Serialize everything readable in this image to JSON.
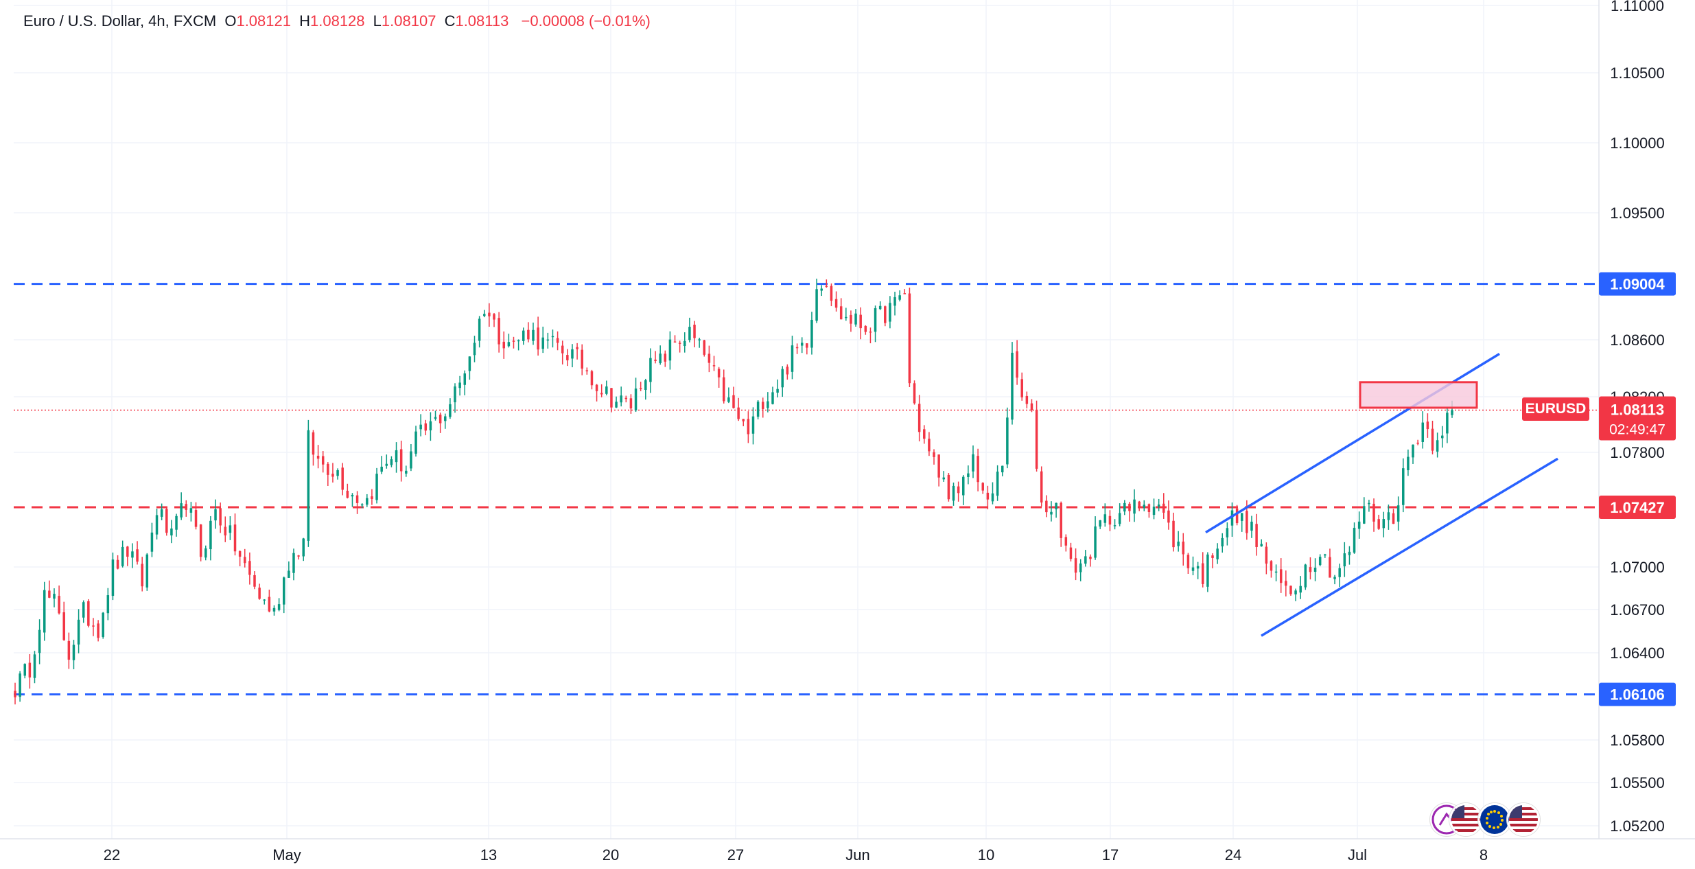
{
  "header": {
    "symbol_name": "Euro / U.S. Dollar, 4h, FXCM",
    "open_label": "O",
    "open_value": "1.08121",
    "high_label": "H",
    "high_value": "1.08128",
    "low_label": "L",
    "low_value": "1.08107",
    "close_label": "C",
    "close_value": "1.08113",
    "change": "−0.00008 (−0.01%)"
  },
  "price_tag": {
    "symbol": "EURUSD",
    "price": "1.08113",
    "countdown": "02:49:47"
  },
  "colors": {
    "up": "#089981",
    "down": "#f23645",
    "blue_level": "#2962ff",
    "red_level": "#f23645",
    "channel": "#2962ff",
    "zone_fill": "#f8c8dc",
    "zone_border": "#f23645",
    "grid": "#f0f3fa"
  },
  "icons": [
    "flash-icon",
    "us-flag-icon",
    "eu-flag-icon",
    "us-flag-icon"
  ],
  "chart_data": {
    "type": "candlestick",
    "title": "Euro / U.S. Dollar, 4h, FXCM",
    "y_ticks": [
      "1.11000",
      "1.10500",
      "1.10000",
      "1.09500",
      "1.08600",
      "1.08200",
      "1.07800",
      "1.07000",
      "1.06700",
      "1.06400",
      "1.05800",
      "1.05500",
      "1.05200"
    ],
    "x_ticks": [
      "22",
      "May",
      "13",
      "20",
      "27",
      "Jun",
      "10",
      "17",
      "24",
      "Jul",
      "8"
    ],
    "horizontal_levels": [
      {
        "value": "1.09004",
        "color": "blue",
        "style": "dashed"
      },
      {
        "value": "1.07427",
        "color": "red",
        "style": "dashed"
      },
      {
        "value": "1.06106",
        "color": "blue",
        "style": "dashed"
      }
    ],
    "current_price": 1.08113,
    "ascending_channel": {
      "upper": [
        {
          "date": "Jun 22",
          "price": 1.0725
        },
        {
          "date": "Jul 7",
          "price": 1.0851
        }
      ],
      "lower": [
        {
          "date": "Jun 24",
          "price": 1.0652
        },
        {
          "date": "Jul 10",
          "price": 1.0777
        }
      ]
    },
    "resistance_zone": {
      "date_from": "Jul 1",
      "date_to": "Jul 6",
      "price_from": 1.0813,
      "price_to": 1.0831
    },
    "path": [
      [
        0,
        1.0615
      ],
      [
        3,
        1.063
      ],
      [
        6,
        1.068
      ],
      [
        8,
        1.0675
      ],
      [
        11,
        1.064
      ],
      [
        14,
        1.0668
      ],
      [
        17,
        1.0658
      ],
      [
        20,
        1.07
      ],
      [
        23,
        1.0712
      ],
      [
        26,
        1.069
      ],
      [
        29,
        1.0742
      ],
      [
        32,
        1.072
      ],
      [
        35,
        1.0748
      ],
      [
        38,
        1.071
      ],
      [
        41,
        1.074
      ],
      [
        44,
        1.0722
      ],
      [
        47,
        1.07
      ],
      [
        50,
        1.068
      ],
      [
        53,
        1.0668
      ],
      [
        56,
        1.0705
      ],
      [
        59,
        1.0718
      ],
      [
        60,
        1.079
      ],
      [
        62,
        1.0775
      ],
      [
        64,
        1.0772
      ],
      [
        66,
        1.0768
      ],
      [
        68,
        1.0755
      ],
      [
        70,
        1.075
      ],
      [
        72,
        1.0748
      ],
      [
        75,
        1.077
      ],
      [
        77,
        1.078
      ],
      [
        80,
        1.077
      ],
      [
        82,
        1.079
      ],
      [
        85,
        1.08
      ],
      [
        88,
        1.081
      ],
      [
        91,
        1.083
      ],
      [
        94,
        1.0862
      ],
      [
        96,
        1.0885
      ],
      [
        99,
        1.0865
      ],
      [
        102,
        1.0858
      ],
      [
        105,
        1.0868
      ],
      [
        108,
        1.0858
      ],
      [
        111,
        1.0856
      ],
      [
        114,
        1.085
      ],
      [
        117,
        1.084
      ],
      [
        120,
        1.0826
      ],
      [
        123,
        1.0818
      ],
      [
        126,
        1.0815
      ],
      [
        129,
        1.084
      ],
      [
        132,
        1.0845
      ],
      [
        135,
        1.086
      ],
      [
        138,
        1.0865
      ],
      [
        141,
        1.085
      ],
      [
        144,
        1.0828
      ],
      [
        147,
        1.081
      ],
      [
        150,
        1.0795
      ],
      [
        153,
        1.082
      ],
      [
        156,
        1.083
      ],
      [
        159,
        1.085
      ],
      [
        162,
        1.0862
      ],
      [
        164,
        1.09
      ],
      [
        166,
        1.0905
      ],
      [
        168,
        1.088
      ],
      [
        171,
        1.0875
      ],
      [
        174,
        1.087
      ],
      [
        177,
        1.0878
      ],
      [
        180,
        1.0885
      ],
      [
        182,
        1.0895
      ],
      [
        183,
        1.083
      ],
      [
        185,
        1.08
      ],
      [
        187,
        1.078
      ],
      [
        190,
        1.076
      ],
      [
        193,
        1.0748
      ],
      [
        196,
        1.0778
      ],
      [
        199,
        1.0742
      ],
      [
        202,
        1.0775
      ],
      [
        204,
        1.0845
      ],
      [
        206,
        1.082
      ],
      [
        208,
        1.0805
      ],
      [
        210,
        1.0745
      ],
      [
        213,
        1.0742
      ],
      [
        216,
        1.07
      ],
      [
        219,
        1.0705
      ],
      [
        222,
        1.073
      ],
      [
        225,
        1.0738
      ],
      [
        228,
        1.074
      ],
      [
        231,
        1.0748
      ],
      [
        234,
        1.0744
      ],
      [
        237,
        1.072
      ],
      [
        240,
        1.0705
      ],
      [
        243,
        1.0695
      ],
      [
        246,
        1.072
      ],
      [
        249,
        1.0735
      ],
      [
        252,
        1.0732
      ],
      [
        255,
        1.0712
      ],
      [
        258,
        1.069
      ],
      [
        261,
        1.0683
      ],
      [
        264,
        1.07
      ],
      [
        267,
        1.0712
      ],
      [
        270,
        1.0695
      ],
      [
        273,
        1.0712
      ],
      [
        276,
        1.0745
      ],
      [
        279,
        1.0732
      ],
      [
        282,
        1.0738
      ],
      [
        285,
        1.0778
      ],
      [
        288,
        1.0803
      ],
      [
        290,
        1.079
      ],
      [
        292,
        1.08
      ],
      [
        294,
        1.0811
      ]
    ]
  }
}
